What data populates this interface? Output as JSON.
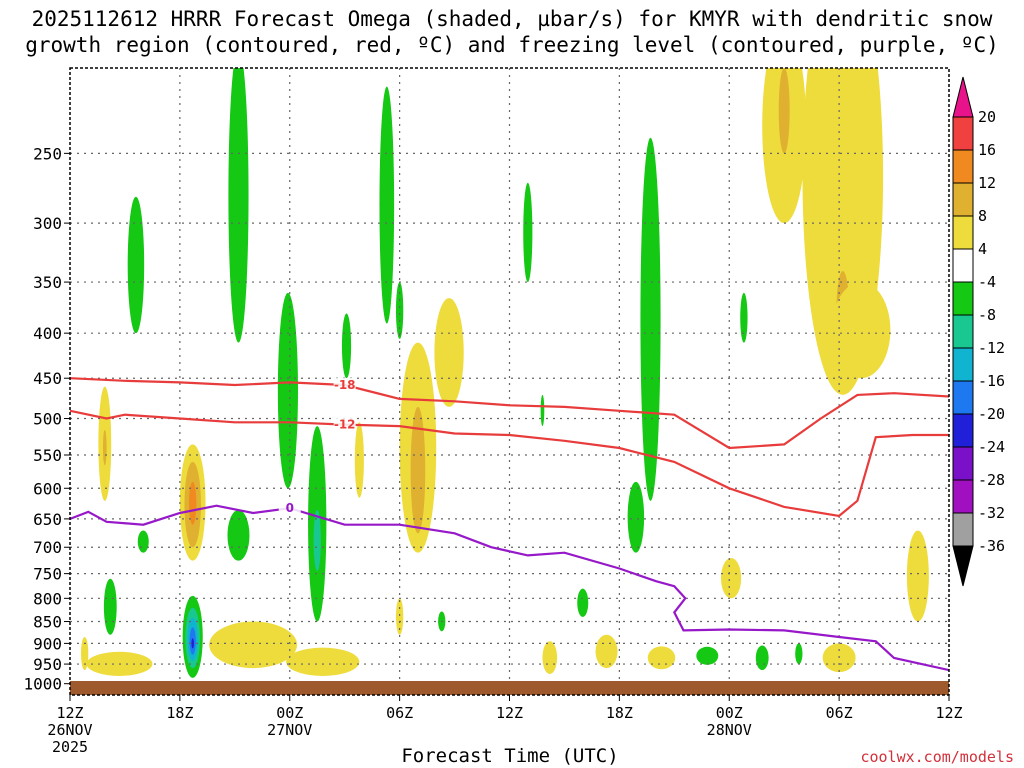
{
  "chart_data": {
    "type": "time-height cross section",
    "title_line1": "2025112612 HRRR Forecast Omega (shaded, µbar/s) for KMYR with dendritic snow",
    "title_line2": "growth region (contoured, red, ºC) and freezing level (contoured, purple, ºC)",
    "xlabel": "Forecast Time (UTC)",
    "credit": "coolwx.com/models",
    "x_range_hours": [
      0,
      48
    ],
    "y_range_hpa": [
      1030,
      200
    ],
    "x_ticks": [
      {
        "hour": 0,
        "label": "12Z",
        "sub1": "26NOV",
        "sub2": "2025"
      },
      {
        "hour": 6,
        "label": "18Z"
      },
      {
        "hour": 12,
        "label": "00Z",
        "sub1": "27NOV"
      },
      {
        "hour": 18,
        "label": "06Z"
      },
      {
        "hour": 24,
        "label": "12Z"
      },
      {
        "hour": 30,
        "label": "18Z"
      },
      {
        "hour": 36,
        "label": "00Z",
        "sub1": "28NOV"
      },
      {
        "hour": 42,
        "label": "06Z"
      },
      {
        "hour": 48,
        "label": "12Z"
      }
    ],
    "y_ticks": [
      250,
      300,
      350,
      400,
      450,
      500,
      550,
      600,
      650,
      700,
      750,
      800,
      850,
      900,
      950,
      1000
    ],
    "colorbar": {
      "labels": [
        "20",
        "16",
        "12",
        "8",
        "4",
        "-4",
        "-8",
        "-12",
        "-16",
        "-20",
        "-24",
        "-28",
        "-32",
        "-36"
      ],
      "colors": [
        "#e8128a",
        "#f04040",
        "#f08a20",
        "#e0b030",
        "#eedc3c",
        "#ffffff",
        "#14c814",
        "#18c890",
        "#10b4d0",
        "#1e78f0",
        "#2020d8",
        "#7a10c8",
        "#a010c0",
        "#a0a0a0",
        "#000000"
      ]
    },
    "contours": [
      {
        "name": "red -18C upper (dendritic top)",
        "color": "#e83c3c",
        "label": "-18",
        "points": [
          [
            0,
            450
          ],
          [
            3,
            453
          ],
          [
            6,
            455
          ],
          [
            9,
            458
          ],
          [
            12,
            455
          ],
          [
            15,
            458
          ],
          [
            18,
            475
          ],
          [
            21,
            478
          ],
          [
            24,
            483
          ],
          [
            27,
            485
          ],
          [
            30,
            490
          ],
          [
            33,
            495
          ],
          [
            36,
            540
          ],
          [
            39,
            535
          ],
          [
            41,
            500
          ],
          [
            43,
            470
          ],
          [
            45,
            468
          ],
          [
            48,
            472
          ]
        ]
      },
      {
        "name": "red -12C lower (dendritic base)",
        "color": "#e83c3c",
        "label": "-12",
        "points": [
          [
            0,
            490
          ],
          [
            2,
            500
          ],
          [
            3,
            495
          ],
          [
            6,
            500
          ],
          [
            9,
            505
          ],
          [
            12,
            505
          ],
          [
            15,
            508
          ],
          [
            18,
            510
          ],
          [
            21,
            520
          ],
          [
            24,
            522
          ],
          [
            27,
            530
          ],
          [
            30,
            540
          ],
          [
            33,
            560
          ],
          [
            36,
            600
          ],
          [
            39,
            630
          ],
          [
            42,
            645
          ],
          [
            43,
            620
          ],
          [
            44,
            525
          ],
          [
            46,
            522
          ],
          [
            48,
            522
          ]
        ]
      },
      {
        "name": "purple 0C freezing level",
        "color": "#9618c8",
        "label": "0",
        "points": [
          [
            0,
            650
          ],
          [
            1,
            638
          ],
          [
            2,
            655
          ],
          [
            4,
            660
          ],
          [
            6,
            640
          ],
          [
            8,
            628
          ],
          [
            10,
            640
          ],
          [
            12,
            632
          ],
          [
            15,
            660
          ],
          [
            18,
            660
          ],
          [
            21,
            675
          ],
          [
            23,
            700
          ],
          [
            25,
            715
          ],
          [
            27,
            710
          ],
          [
            30,
            740
          ],
          [
            32,
            765
          ],
          [
            33,
            775
          ],
          [
            33.6,
            800
          ],
          [
            33,
            830
          ],
          [
            33.5,
            870
          ],
          [
            36,
            868
          ],
          [
            39,
            870
          ],
          [
            42,
            885
          ],
          [
            44,
            895
          ],
          [
            45,
            935
          ],
          [
            48,
            965
          ]
        ]
      }
    ],
    "omega_regions": [
      {
        "value": 4,
        "color": "#eedc3c",
        "cx": 1.9,
        "cy": 540,
        "rx": 0.35,
        "ry": 80
      },
      {
        "value": 8,
        "color": "#e0b030",
        "cx": 1.9,
        "cy": 540,
        "rx": 0.1,
        "ry": 25
      },
      {
        "value": 4,
        "color": "#eedc3c",
        "cx": 6.7,
        "cy": 630,
        "rx": 0.7,
        "ry": 95
      },
      {
        "value": 8,
        "color": "#e0b030",
        "cx": 6.7,
        "cy": 630,
        "rx": 0.45,
        "ry": 70
      },
      {
        "value": 12,
        "color": "#f08a20",
        "cx": 6.7,
        "cy": 625,
        "rx": 0.2,
        "ry": 35
      },
      {
        "value": 4,
        "color": "#eedc3c",
        "cx": 19.0,
        "cy": 560,
        "rx": 1.0,
        "ry": 150
      },
      {
        "value": 8,
        "color": "#e0b030",
        "cx": 19.0,
        "cy": 580,
        "rx": 0.4,
        "ry": 95
      },
      {
        "value": 4,
        "color": "#eedc3c",
        "cx": 20.7,
        "cy": 425,
        "rx": 0.8,
        "ry": 60
      },
      {
        "value": 4,
        "color": "#eedc3c",
        "cx": 10.0,
        "cy": 905,
        "rx": 2.4,
        "ry": 55
      },
      {
        "value": 4,
        "color": "#eedc3c",
        "cx": 13.8,
        "cy": 945,
        "rx": 2.0,
        "ry": 35
      },
      {
        "value": 4,
        "color": "#eedc3c",
        "cx": 2.7,
        "cy": 950,
        "rx": 1.8,
        "ry": 30
      },
      {
        "value": 4,
        "color": "#eedc3c",
        "cx": 42.2,
        "cy": 310,
        "rx": 2.2,
        "ry": 160
      },
      {
        "value": 8,
        "color": "#e0b030",
        "cx": 42.2,
        "cy": 380,
        "rx": 0.35,
        "ry": 40
      },
      {
        "value": 4,
        "color": "#eedc3c",
        "cx": 39.0,
        "cy": 240,
        "rx": 1.2,
        "ry": 60
      },
      {
        "value": 8,
        "color": "#e0b030",
        "cx": 39.0,
        "cy": 225,
        "rx": 0.3,
        "ry": 25
      },
      {
        "value": 4,
        "color": "#eedc3c",
        "cx": 43.2,
        "cy": 400,
        "rx": 1.6,
        "ry": 50
      },
      {
        "value": 4,
        "color": "#eedc3c",
        "cx": 46.3,
        "cy": 760,
        "rx": 0.6,
        "ry": 90
      },
      {
        "value": 4,
        "color": "#eedc3c",
        "cx": 36.1,
        "cy": 760,
        "rx": 0.55,
        "ry": 40
      },
      {
        "value": 4,
        "color": "#eedc3c",
        "cx": 42.0,
        "cy": 935,
        "rx": 0.9,
        "ry": 35
      },
      {
        "value": 4,
        "color": "#eedc3c",
        "cx": 32.3,
        "cy": 935,
        "rx": 0.75,
        "ry": 28
      },
      {
        "value": 4,
        "color": "#eedc3c",
        "cx": 29.3,
        "cy": 920,
        "rx": 0.6,
        "ry": 40
      },
      {
        "value": 4,
        "color": "#eedc3c",
        "cx": 26.2,
        "cy": 935,
        "rx": 0.4,
        "ry": 40
      },
      {
        "value": 4,
        "color": "#eedc3c",
        "cx": 15.8,
        "cy": 560,
        "rx": 0.25,
        "ry": 55
      },
      {
        "value": 4,
        "color": "#eedc3c",
        "cx": 0.8,
        "cy": 925,
        "rx": 0.2,
        "ry": 40
      },
      {
        "value": 4,
        "color": "#eedc3c",
        "cx": 18.0,
        "cy": 840,
        "rx": 0.2,
        "ry": 40
      },
      {
        "value": -4,
        "color": "#14c814",
        "cx": 9.2,
        "cy": 300,
        "rx": 0.55,
        "ry": 110
      },
      {
        "value": -4,
        "color": "#14c814",
        "cx": 3.6,
        "cy": 340,
        "rx": 0.45,
        "ry": 60
      },
      {
        "value": -4,
        "color": "#14c814",
        "cx": 17.3,
        "cy": 300,
        "rx": 0.4,
        "ry": 90
      },
      {
        "value": -4,
        "color": "#14c814",
        "cx": 11.9,
        "cy": 480,
        "rx": 0.55,
        "ry": 120
      },
      {
        "value": -4,
        "color": "#14c814",
        "cx": 13.5,
        "cy": 680,
        "rx": 0.5,
        "ry": 170
      },
      {
        "value": -8,
        "color": "#18c890",
        "cx": 13.5,
        "cy": 690,
        "rx": 0.2,
        "ry": 55
      },
      {
        "value": -4,
        "color": "#14c814",
        "cx": 9.2,
        "cy": 680,
        "rx": 0.6,
        "ry": 45
      },
      {
        "value": -4,
        "color": "#14c814",
        "cx": 4.0,
        "cy": 690,
        "rx": 0.3,
        "ry": 20
      },
      {
        "value": -4,
        "color": "#14c814",
        "cx": 2.2,
        "cy": 820,
        "rx": 0.35,
        "ry": 60
      },
      {
        "value": -4,
        "color": "#14c814",
        "cx": 15.1,
        "cy": 415,
        "rx": 0.25,
        "ry": 35
      },
      {
        "value": -4,
        "color": "#14c814",
        "cx": 18.0,
        "cy": 378,
        "rx": 0.2,
        "ry": 28
      },
      {
        "value": -4,
        "color": "#14c814",
        "cx": 25.0,
        "cy": 310,
        "rx": 0.25,
        "ry": 40
      },
      {
        "value": -4,
        "color": "#14c814",
        "cx": 25.8,
        "cy": 490,
        "rx": 0.1,
        "ry": 20
      },
      {
        "value": -4,
        "color": "#14c814",
        "cx": 31.7,
        "cy": 430,
        "rx": 0.55,
        "ry": 190
      },
      {
        "value": -4,
        "color": "#14c814",
        "cx": 30.9,
        "cy": 650,
        "rx": 0.45,
        "ry": 60
      },
      {
        "value": -4,
        "color": "#14c814",
        "cx": 28.0,
        "cy": 810,
        "rx": 0.3,
        "ry": 30
      },
      {
        "value": -4,
        "color": "#14c814",
        "cx": 36.8,
        "cy": 385,
        "rx": 0.2,
        "ry": 25
      },
      {
        "value": -4,
        "color": "#14c814",
        "cx": 34.8,
        "cy": 930,
        "rx": 0.6,
        "ry": 22
      },
      {
        "value": -4,
        "color": "#14c814",
        "cx": 37.8,
        "cy": 935,
        "rx": 0.35,
        "ry": 30
      },
      {
        "value": -4,
        "color": "#14c814",
        "cx": 39.8,
        "cy": 925,
        "rx": 0.2,
        "ry": 25
      },
      {
        "value": -4,
        "color": "#14c814",
        "cx": 20.3,
        "cy": 850,
        "rx": 0.2,
        "ry": 22
      },
      {
        "value": -4,
        "color": "#14c814",
        "cx": 6.7,
        "cy": 890,
        "rx": 0.55,
        "ry": 95
      },
      {
        "value": -8,
        "color": "#18c890",
        "cx": 6.7,
        "cy": 890,
        "rx": 0.4,
        "ry": 70
      },
      {
        "value": -12,
        "color": "#10b4d0",
        "cx": 6.7,
        "cy": 892,
        "rx": 0.28,
        "ry": 50
      },
      {
        "value": -16,
        "color": "#1e78f0",
        "cx": 6.7,
        "cy": 895,
        "rx": 0.17,
        "ry": 32
      },
      {
        "value": -24,
        "color": "#2020d8",
        "cx": 6.7,
        "cy": 900,
        "rx": 0.07,
        "ry": 12
      }
    ]
  }
}
